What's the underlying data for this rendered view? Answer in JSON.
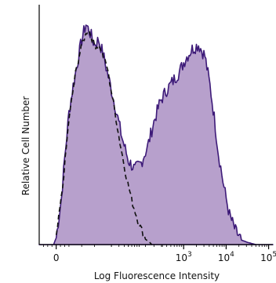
{
  "chart_data": {
    "type": "area",
    "title": "",
    "xlabel": "Log Fluorescence Intensity",
    "ylabel": "Relative Cell Number",
    "x_scale": "biexponential",
    "x_range_decades": [
      -0.4,
      5.1
    ],
    "ylim": [
      0,
      1
    ],
    "grid": false,
    "legend": "none",
    "x_ticks": [
      {
        "value": 0,
        "label": "0"
      },
      {
        "value": 3,
        "label": "10",
        "exp": "3"
      },
      {
        "value": 4,
        "label": "10",
        "exp": "4"
      },
      {
        "value": 5,
        "label": "10",
        "exp": "5"
      }
    ],
    "series": [
      {
        "style": "filled-histogram",
        "color": "#3d1a78",
        "fill": "#b7a0cc",
        "points": [
          [
            -0.4,
            0.0
          ],
          [
            -0.06,
            0.0
          ],
          [
            0.0,
            0.03
          ],
          [
            0.12,
            0.2
          ],
          [
            0.2,
            0.38
          ],
          [
            0.3,
            0.58
          ],
          [
            0.4,
            0.7
          ],
          [
            0.5,
            0.8
          ],
          [
            0.6,
            0.9
          ],
          [
            0.7,
            0.97
          ],
          [
            0.8,
            0.93
          ],
          [
            0.9,
            0.88
          ],
          [
            1.0,
            0.9
          ],
          [
            1.1,
            0.84
          ],
          [
            1.25,
            0.72
          ],
          [
            1.4,
            0.6
          ],
          [
            1.55,
            0.47
          ],
          [
            1.7,
            0.37
          ],
          [
            1.85,
            0.33
          ],
          [
            2.0,
            0.36
          ],
          [
            2.15,
            0.43
          ],
          [
            2.3,
            0.54
          ],
          [
            2.45,
            0.63
          ],
          [
            2.6,
            0.68
          ],
          [
            2.75,
            0.72
          ],
          [
            2.9,
            0.76
          ],
          [
            3.05,
            0.82
          ],
          [
            3.2,
            0.86
          ],
          [
            3.35,
            0.88
          ],
          [
            3.5,
            0.83
          ],
          [
            3.62,
            0.7
          ],
          [
            3.72,
            0.56
          ],
          [
            3.82,
            0.4
          ],
          [
            3.95,
            0.25
          ],
          [
            4.08,
            0.13
          ],
          [
            4.22,
            0.06
          ],
          [
            4.36,
            0.02
          ],
          [
            4.5,
            0.01
          ],
          [
            4.7,
            0.0
          ],
          [
            5.1,
            0.0
          ]
        ]
      },
      {
        "style": "dashed-line",
        "color": "#111111",
        "points": [
          [
            0.0,
            0.03
          ],
          [
            0.15,
            0.25
          ],
          [
            0.3,
            0.55
          ],
          [
            0.45,
            0.75
          ],
          [
            0.6,
            0.88
          ],
          [
            0.75,
            0.95
          ],
          [
            0.9,
            0.88
          ],
          [
            1.05,
            0.86
          ],
          [
            1.2,
            0.78
          ],
          [
            1.35,
            0.62
          ],
          [
            1.5,
            0.45
          ],
          [
            1.65,
            0.3
          ],
          [
            1.8,
            0.18
          ],
          [
            1.95,
            0.09
          ],
          [
            2.1,
            0.03
          ],
          [
            2.25,
            0.0
          ]
        ]
      }
    ]
  }
}
